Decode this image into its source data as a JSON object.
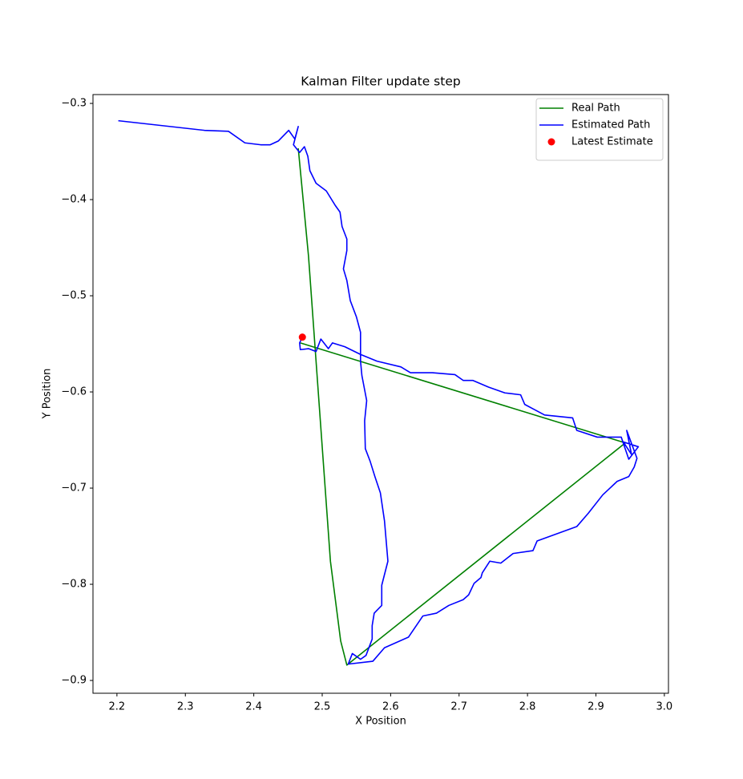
{
  "chart_data": {
    "type": "line",
    "title": "Kalman Filter update step",
    "x_label": "X Position",
    "y_label": "Y Position",
    "xlim": [
      2.165,
      3.006
    ],
    "ylim": [
      -0.9133,
      -0.2908
    ],
    "xticks": [
      2.2,
      2.3,
      2.4,
      2.5,
      2.6,
      2.7,
      2.8,
      2.9,
      {
        "value": 3,
        "label": "3.0"
      }
    ],
    "yticks": [
      {
        "value": -0.9,
        "label": "−0.9"
      },
      {
        "value": -0.8,
        "label": "−0.8"
      },
      {
        "value": -0.7,
        "label": "−0.7"
      },
      {
        "value": -0.6,
        "label": "−0.6"
      },
      {
        "value": -0.5,
        "label": "−0.5"
      },
      {
        "value": -0.4,
        "label": "−0.4"
      },
      {
        "value": -0.3,
        "label": "−0.3"
      }
    ],
    "grid": false,
    "legend": "upper right",
    "series": [
      {
        "name": "Real Path",
        "type": "line",
        "color": "#008000",
        "x": [
          2.465,
          2.48,
          2.512,
          2.527,
          2.536,
          2.943,
          2.468
        ],
        "values": [
          -0.3467,
          -0.459,
          -0.776,
          -0.859,
          -0.884,
          -0.653,
          -0.549
        ]
      },
      {
        "name": "Estimated Path",
        "type": "line",
        "color": "#0000ff",
        "x": [
          2.202,
          2.328,
          2.363,
          2.387,
          2.41,
          2.424,
          2.436,
          2.451,
          2.46,
          2.465,
          2.458,
          2.467,
          2.474,
          2.479,
          2.482,
          2.491,
          2.506,
          2.519,
          2.526,
          2.529,
          2.536,
          2.536,
          2.531,
          2.536,
          2.541,
          2.55,
          2.556,
          2.556,
          2.558,
          2.565,
          2.562,
          2.563,
          2.57,
          2.577,
          2.585,
          2.591,
          2.596,
          2.587,
          2.587,
          2.576,
          2.573,
          2.573,
          2.564,
          2.556,
          2.544,
          2.538,
          2.574,
          2.591,
          2.626,
          2.647,
          2.667,
          2.685,
          2.706,
          2.714,
          2.722,
          2.732,
          2.734,
          2.745,
          2.761,
          2.779,
          2.808,
          2.814,
          2.872,
          2.889,
          2.91,
          2.931,
          2.948,
          2.956,
          2.96,
          2.945,
          2.952,
          2.94,
          2.962,
          2.948,
          2.937,
          2.902,
          2.872,
          2.866,
          2.825,
          2.796,
          2.79,
          2.767,
          2.743,
          2.72,
          2.706,
          2.694,
          2.661,
          2.629,
          2.615,
          2.58,
          2.556,
          2.533,
          2.515,
          2.509,
          2.498,
          2.491,
          2.48,
          2.468,
          2.467,
          2.471
        ],
        "values": [
          -0.318,
          -0.328,
          -0.329,
          -0.341,
          -0.343,
          -0.343,
          -0.339,
          -0.328,
          -0.337,
          -0.324,
          -0.343,
          -0.351,
          -0.345,
          -0.355,
          -0.37,
          -0.383,
          -0.391,
          -0.406,
          -0.413,
          -0.428,
          -0.441,
          -0.453,
          -0.472,
          -0.484,
          -0.505,
          -0.522,
          -0.538,
          -0.568,
          -0.583,
          -0.609,
          -0.63,
          -0.659,
          -0.672,
          -0.688,
          -0.705,
          -0.734,
          -0.776,
          -0.801,
          -0.822,
          -0.83,
          -0.843,
          -0.857,
          -0.874,
          -0.878,
          -0.872,
          -0.883,
          -0.88,
          -0.866,
          -0.855,
          -0.833,
          -0.83,
          -0.822,
          -0.816,
          -0.811,
          -0.799,
          -0.793,
          -0.788,
          -0.776,
          -0.778,
          -0.768,
          -0.765,
          -0.755,
          -0.74,
          -0.726,
          -0.707,
          -0.693,
          -0.688,
          -0.678,
          -0.669,
          -0.64,
          -0.665,
          -0.652,
          -0.657,
          -0.67,
          -0.647,
          -0.647,
          -0.64,
          -0.627,
          -0.624,
          -0.613,
          -0.603,
          -0.601,
          -0.595,
          -0.588,
          -0.588,
          -0.582,
          -0.58,
          -0.58,
          -0.574,
          -0.568,
          -0.561,
          -0.553,
          -0.549,
          -0.555,
          -0.545,
          -0.558,
          -0.555,
          -0.556,
          -0.549,
          -0.543
        ]
      },
      {
        "name": "Latest Estimate",
        "type": "scatter",
        "color": "#ff0000",
        "x": [
          2.471
        ],
        "values": [
          -0.543
        ]
      }
    ]
  }
}
